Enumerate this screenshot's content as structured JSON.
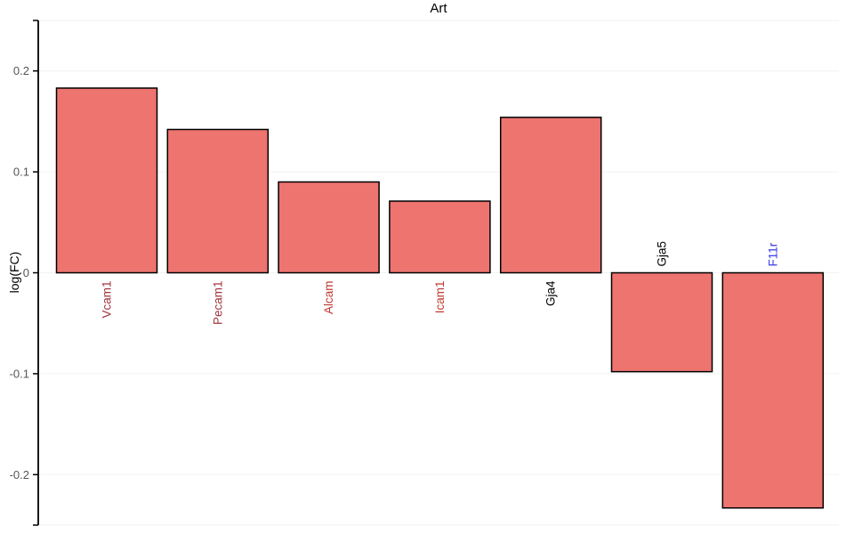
{
  "chart_data": {
    "type": "bar",
    "title": "Art",
    "ylabel": "log(FC)",
    "categories": [
      "Vcam1",
      "Pecam1",
      "Alcam",
      "Icam1",
      "Gja4",
      "Gja5",
      "F11r"
    ],
    "values": [
      0.183,
      0.142,
      0.09,
      0.071,
      0.154,
      -0.098,
      -0.233
    ],
    "label_colors": [
      "#A23540",
      "#A23540",
      "#BE3A31",
      "#BE3A31",
      "#000000",
      "#000000",
      "#3A3AE8"
    ],
    "label_rotation_deg": 90,
    "bar_fill": "#EE7470",
    "bar_stroke": "#000000",
    "yticks": [
      0.2,
      0.1,
      0,
      -0.1,
      -0.2
    ],
    "ytick_labels": [
      "0.2",
      "0.1",
      "0",
      "-0.1",
      "-0.2"
    ],
    "ylim": [
      -0.25,
      0.25
    ],
    "grid": true,
    "grid_color": "#F2F2F2",
    "axis_color": "#000000",
    "tick_label_color": "#555555",
    "legend": "none"
  }
}
